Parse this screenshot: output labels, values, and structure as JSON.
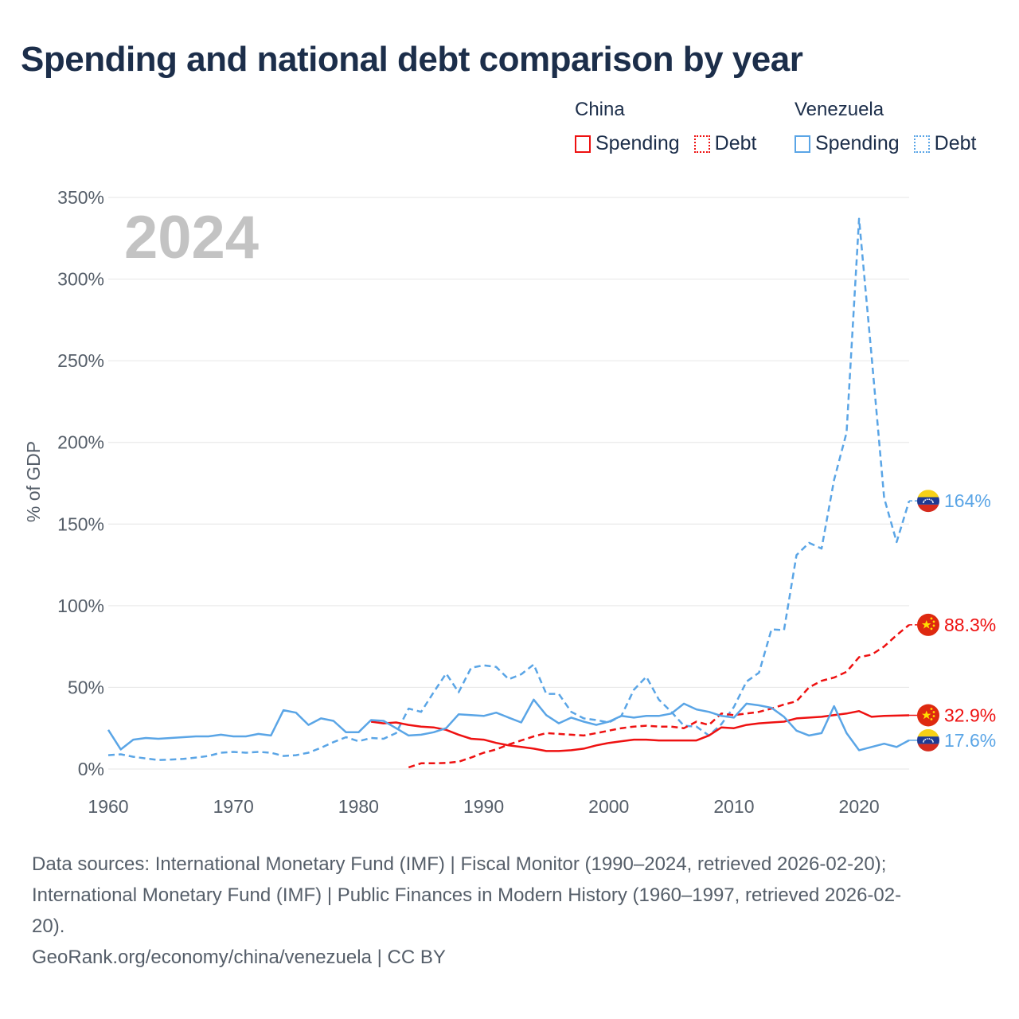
{
  "title": "Spending and national debt comparison by year",
  "legend": {
    "china": {
      "label": "China",
      "spending": "Spending",
      "debt": "Debt",
      "color": "#ee1111"
    },
    "venezuela": {
      "label": "Venezuela",
      "spending": "Spending",
      "debt": "Debt",
      "color": "#5aa5e6"
    }
  },
  "chart_data": {
    "type": "line",
    "title": "Spending and national debt comparison by year",
    "year_label": "2024",
    "xlabel": "",
    "ylabel": "% of GDP",
    "xlim": [
      1960,
      2024
    ],
    "ylim": [
      0,
      350
    ],
    "xticks": [
      1960,
      1970,
      1980,
      1990,
      2000,
      2010,
      2020
    ],
    "yticks": [
      0,
      50,
      100,
      150,
      200,
      250,
      300,
      350
    ],
    "ytick_labels": [
      "0%",
      "50%",
      "100%",
      "150%",
      "200%",
      "250%",
      "300%",
      "350%"
    ],
    "grid": true,
    "series": [
      {
        "name": "Venezuela Debt",
        "country": "venezuela",
        "kind": "debt",
        "color": "#5aa5e6",
        "dashed": true,
        "end_label": "164%",
        "x": [
          1960,
          1961,
          1962,
          1963,
          1964,
          1965,
          1966,
          1967,
          1968,
          1969,
          1970,
          1971,
          1972,
          1973,
          1974,
          1975,
          1976,
          1977,
          1978,
          1979,
          1980,
          1981,
          1982,
          1983,
          1984,
          1985,
          1986,
          1987,
          1988,
          1989,
          1990,
          1991,
          1992,
          1993,
          1994,
          1995,
          1996,
          1997,
          1998,
          1999,
          2000,
          2001,
          2002,
          2003,
          2004,
          2005,
          2006,
          2007,
          2008,
          2009,
          2010,
          2011,
          2012,
          2013,
          2014,
          2015,
          2016,
          2017,
          2018,
          2019,
          2020,
          2021,
          2022,
          2023,
          2024
        ],
        "y": [
          8.5,
          9,
          7.5,
          6.5,
          5.5,
          5.8,
          6.2,
          7,
          8,
          10,
          10.5,
          10,
          10.5,
          10,
          8,
          8.5,
          10,
          13,
          16.5,
          19.5,
          17,
          19,
          18.5,
          22,
          37,
          35,
          47,
          58.5,
          47,
          62,
          63.5,
          62.5,
          55,
          58,
          64,
          46,
          46,
          35,
          31,
          30,
          28.5,
          32.5,
          48.5,
          56.5,
          42.5,
          35,
          26.5,
          26,
          20.5,
          27.5,
          38,
          53.5,
          59,
          85.5,
          85,
          131,
          138.5,
          135,
          177,
          206,
          337,
          253,
          166,
          139,
          164.2
        ]
      },
      {
        "name": "China Debt",
        "country": "china",
        "kind": "debt",
        "color": "#ee1111",
        "dashed": true,
        "end_label": "88.3%",
        "x": [
          1984,
          1985,
          1986,
          1987,
          1988,
          1989,
          1990,
          1991,
          1992,
          1993,
          1994,
          1995,
          1996,
          1997,
          1998,
          1999,
          2000,
          2001,
          2002,
          2003,
          2004,
          2005,
          2006,
          2007,
          2008,
          2009,
          2010,
          2011,
          2012,
          2013,
          2014,
          2015,
          2016,
          2017,
          2018,
          2019,
          2020,
          2021,
          2022,
          2023,
          2024
        ],
        "y": [
          1,
          3.5,
          3.5,
          3.7,
          4.5,
          7,
          10,
          12,
          15,
          17.5,
          20,
          22,
          21.5,
          21,
          20.5,
          22,
          23.5,
          25,
          26,
          26.5,
          26,
          26,
          25,
          29,
          27,
          34,
          33,
          34,
          35,
          37,
          39.5,
          41.5,
          50,
          54,
          56,
          59.5,
          68.5,
          70,
          75,
          82,
          88.3
        ]
      },
      {
        "name": "China Spending",
        "country": "china",
        "kind": "spending",
        "color": "#ee1111",
        "dashed": false,
        "end_label": "32.9%",
        "x": [
          1981,
          1982,
          1983,
          1984,
          1985,
          1986,
          1987,
          1988,
          1989,
          1990,
          1991,
          1992,
          1993,
          1994,
          1995,
          1996,
          1997,
          1998,
          1999,
          2000,
          2001,
          2002,
          2003,
          2004,
          2005,
          2006,
          2007,
          2008,
          2009,
          2010,
          2011,
          2012,
          2013,
          2014,
          2015,
          2016,
          2017,
          2018,
          2019,
          2020,
          2021,
          2022,
          2023,
          2024
        ],
        "y": [
          29,
          28,
          28.5,
          27,
          26,
          25.5,
          24,
          21,
          18.5,
          18,
          16,
          14.5,
          13.5,
          12.5,
          11,
          11,
          11.5,
          12.5,
          14.5,
          16,
          17,
          18,
          18,
          17.5,
          17.5,
          17.5,
          17.5,
          20.5,
          25.5,
          25,
          27,
          28,
          28.5,
          29,
          31,
          31.5,
          32,
          33,
          34,
          35.5,
          32,
          32.5,
          32.7,
          32.9
        ]
      },
      {
        "name": "Venezuela Spending",
        "country": "venezuela",
        "kind": "spending",
        "color": "#5aa5e6",
        "dashed": false,
        "end_label": "17.6%",
        "x": [
          1960,
          1961,
          1962,
          1963,
          1964,
          1965,
          1966,
          1967,
          1968,
          1969,
          1970,
          1971,
          1972,
          1973,
          1974,
          1975,
          1976,
          1977,
          1978,
          1979,
          1980,
          1981,
          1982,
          1983,
          1984,
          1985,
          1986,
          1987,
          1988,
          1989,
          1990,
          1991,
          1992,
          1993,
          1994,
          1995,
          1996,
          1997,
          1998,
          1999,
          2000,
          2001,
          2002,
          2003,
          2004,
          2005,
          2006,
          2007,
          2008,
          2009,
          2010,
          2011,
          2012,
          2013,
          2014,
          2015,
          2016,
          2017,
          2018,
          2019,
          2020,
          2021,
          2022,
          2023,
          2024
        ],
        "y": [
          24,
          12,
          18,
          19,
          18.5,
          19,
          19.5,
          20,
          20,
          21,
          20,
          20,
          21.5,
          20.5,
          36,
          34.5,
          27,
          31,
          29.5,
          22.5,
          22.5,
          30,
          29.5,
          25,
          20.5,
          21,
          22.5,
          25,
          33.5,
          33,
          32.5,
          34.5,
          31.5,
          28.5,
          42.5,
          33,
          28,
          31.5,
          29,
          27,
          29,
          32.5,
          31.5,
          32.5,
          32.5,
          34,
          40,
          36.5,
          35,
          32.5,
          31.5,
          40,
          39,
          37.5,
          32,
          23.5,
          20.5,
          22,
          38.5,
          22,
          11.5,
          13.5,
          15.5,
          13.5,
          17.6
        ]
      }
    ]
  },
  "footer": {
    "line1": "Data sources: International Monetary Fund (IMF) | Fiscal Monitor (1990–2024, retrieved 2026-02-20);",
    "line2": "International Monetary Fund (IMF) | Public Finances in Modern History (1960–1997, retrieved 2026-02-",
    "line3": "20).",
    "line4": "GeoRank.org/economy/china/venezuela | CC BY"
  }
}
